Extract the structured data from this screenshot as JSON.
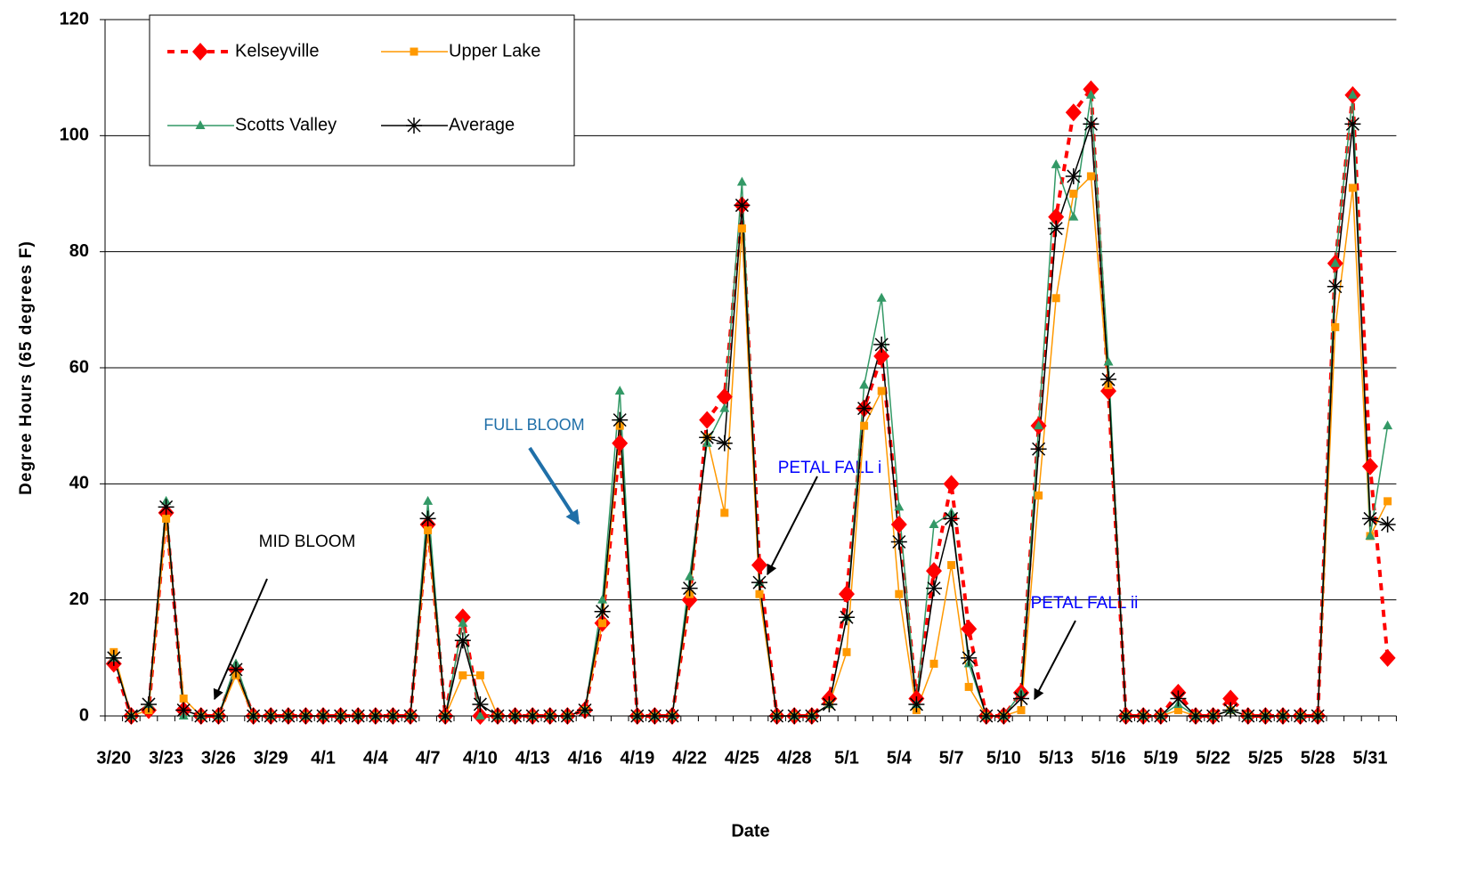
{
  "chart_data": {
    "type": "line",
    "y_label": "Degree Hours (65 degrees F)",
    "x_label": "Date",
    "categories": [
      "3/20",
      null,
      null,
      "3/23",
      null,
      null,
      "3/26",
      null,
      null,
      "3/29",
      null,
      null,
      "4/1",
      null,
      null,
      "4/4",
      null,
      null,
      "4/7",
      null,
      null,
      "4/10",
      null,
      null,
      "4/13",
      null,
      null,
      "4/16",
      null,
      null,
      "4/19",
      null,
      null,
      "4/22",
      null,
      null,
      "4/25",
      null,
      null,
      "4/28",
      null,
      null,
      "5/1",
      null,
      null,
      "5/4",
      null,
      null,
      "5/7",
      null,
      null,
      "5/10",
      null,
      null,
      "5/13",
      null,
      null,
      "5/16",
      null,
      null,
      "5/19",
      null,
      null,
      "5/22",
      null,
      null,
      "5/25",
      null,
      null,
      "5/28",
      null,
      null,
      "5/31",
      null
    ],
    "series": [
      {
        "name": "Kelseyville",
        "color": "#ff0000",
        "dashed": true,
        "marker": "diamond",
        "values": [
          9,
          0,
          1,
          35,
          1,
          0,
          0,
          8,
          0,
          0,
          0,
          0,
          0,
          0,
          0,
          0,
          0,
          0,
          33,
          0,
          17,
          0,
          0,
          0,
          0,
          0,
          0,
          1,
          16,
          47,
          0,
          0,
          0,
          20,
          51,
          55,
          88,
          26,
          0,
          0,
          0,
          3,
          21,
          53,
          62,
          33,
          3,
          25,
          40,
          15,
          0,
          0,
          4,
          50,
          86,
          104,
          108,
          56,
          0,
          0,
          0,
          4,
          0,
          0,
          3,
          0,
          0,
          0,
          0,
          0,
          78,
          107,
          43,
          10
        ]
      },
      {
        "name": "Upper Lake",
        "color": "#ff9900",
        "dashed": false,
        "marker": "square",
        "values": [
          11,
          0,
          1,
          34,
          3,
          0,
          0,
          7,
          0,
          0,
          0,
          0,
          0,
          0,
          0,
          0,
          0,
          0,
          32,
          0,
          7,
          7,
          0,
          0,
          0,
          0,
          0,
          1,
          16,
          50,
          0,
          0,
          0,
          21,
          48,
          35,
          84,
          21,
          0,
          0,
          0,
          2,
          11,
          50,
          56,
          21,
          1,
          9,
          26,
          5,
          0,
          0,
          1,
          38,
          72,
          90,
          93,
          57,
          0,
          0,
          0,
          1,
          0,
          0,
          1,
          0,
          0,
          0,
          0,
          0,
          67,
          91,
          31,
          37
        ]
      },
      {
        "name": "Scotts Valley",
        "color": "#339966",
        "dashed": false,
        "marker": "triangle",
        "values": [
          10,
          0,
          2,
          37,
          0,
          0,
          0,
          9,
          0,
          0,
          0,
          0,
          0,
          0,
          0,
          0,
          0,
          0,
          37,
          0,
          16,
          0,
          0,
          0,
          0,
          0,
          0,
          1,
          20,
          56,
          0,
          0,
          0,
          24,
          47,
          53,
          92,
          23,
          0,
          0,
          0,
          2,
          17,
          57,
          72,
          36,
          2,
          33,
          35,
          9,
          0,
          0,
          4,
          50,
          95,
          86,
          107,
          61,
          0,
          0,
          0,
          2,
          0,
          0,
          1,
          0,
          0,
          0,
          0,
          0,
          78,
          107,
          31,
          50
        ]
      },
      {
        "name": "Average",
        "color": "#000000",
        "dashed": false,
        "marker": "asterisk",
        "values": [
          10,
          0,
          2,
          36,
          1,
          0,
          0,
          8,
          0,
          0,
          0,
          0,
          0,
          0,
          0,
          0,
          0,
          0,
          34,
          0,
          13,
          2,
          0,
          0,
          0,
          0,
          0,
          1,
          18,
          51,
          0,
          0,
          0,
          22,
          48,
          47,
          88,
          23,
          0,
          0,
          0,
          2,
          17,
          53,
          64,
          30,
          2,
          22,
          34,
          10,
          0,
          0,
          3,
          46,
          84,
          93,
          102,
          58,
          0,
          0,
          0,
          3,
          0,
          0,
          1,
          0,
          0,
          0,
          0,
          0,
          74,
          102,
          34,
          33
        ]
      }
    ],
    "ylim": [
      0,
      120
    ],
    "yticks": [
      0,
      20,
      40,
      60,
      80,
      100,
      120
    ],
    "grid": true,
    "annotations": [
      "MID BLOOM",
      "FULL BLOOM",
      "PETAL FALL i",
      "PETAL FALL ii"
    ]
  }
}
